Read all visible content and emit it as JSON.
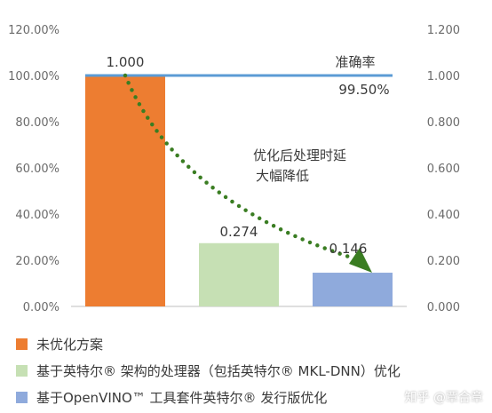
{
  "chart_data": {
    "type": "bar",
    "categories": [
      "未优化方案",
      "基于英特尔® 架构的处理器（包括英特尔® MKL-DNN）优化",
      "基于OpenVINO™ 工具套件英特尔® 发行版优化"
    ],
    "series": [
      {
        "name": "时延",
        "values": [
          1.0,
          0.274,
          0.146
        ],
        "axis": "right"
      },
      {
        "name": "准确率",
        "type": "line",
        "values": [
          1.0,
          1.0,
          0.995
        ],
        "axis": "left"
      }
    ],
    "bar_colors": [
      "#ED7D31",
      "#C6E0B4",
      "#8FAADC"
    ],
    "line_color": "#5B9BD5",
    "arrow_color": "#3A7D22",
    "data_labels": [
      "1.000",
      "0.274",
      "0.146"
    ],
    "left_axis": {
      "ticks": [
        "0.00%",
        "20.00%",
        "40.00%",
        "60.00%",
        "80.00%",
        "100.00%",
        "120.00%"
      ],
      "range": [
        0,
        1.2
      ]
    },
    "right_axis": {
      "ticks": [
        "0.000",
        "0.200",
        "0.400",
        "0.600",
        "0.800",
        "1.000",
        "1.200"
      ],
      "range": [
        0,
        1.2
      ]
    },
    "annotations": {
      "accuracy_title": "准确率",
      "accuracy_value": "99.50%",
      "latency_note_line1": "优化后处理时延",
      "latency_note_line2": "大幅降低"
    },
    "legend_placement": "bottom",
    "grid": false
  },
  "watermark": "知乎 @覃合章"
}
